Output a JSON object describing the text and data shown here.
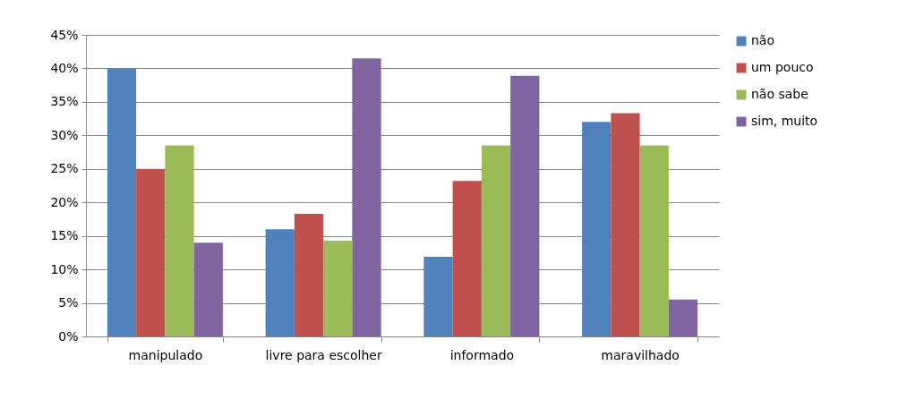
{
  "chart_data": {
    "type": "bar",
    "categories": [
      "manipulado",
      "livre para escolher",
      "informado",
      "maravilhado"
    ],
    "series": [
      {
        "name": "não",
        "color": "#4f81bd",
        "values": [
          40,
          16,
          11.9,
          32
        ]
      },
      {
        "name": "um pouco",
        "color": "#c0504d",
        "values": [
          25,
          18.3,
          23.2,
          33.3
        ]
      },
      {
        "name": "não sabe",
        "color": "#9bbb59",
        "values": [
          28.5,
          14.3,
          28.5,
          28.5
        ]
      },
      {
        "name": "sim, muito",
        "color": "#8064a2",
        "values": [
          14,
          41.5,
          38.9,
          5.5
        ]
      }
    ],
    "ylim": [
      0,
      45
    ],
    "yticks": [
      {
        "value": 0,
        "label": "0%"
      },
      {
        "value": 5,
        "label": "5%"
      },
      {
        "value": 10,
        "label": "10%"
      },
      {
        "value": 15,
        "label": "15%"
      },
      {
        "value": 20,
        "label": "20%"
      },
      {
        "value": 25,
        "label": "25%"
      },
      {
        "value": 30,
        "label": "30%"
      },
      {
        "value": 35,
        "label": "35%"
      },
      {
        "value": 40,
        "label": "40%"
      },
      {
        "value": 45,
        "label": "45%"
      }
    ],
    "grid": "y",
    "legend": "right"
  }
}
